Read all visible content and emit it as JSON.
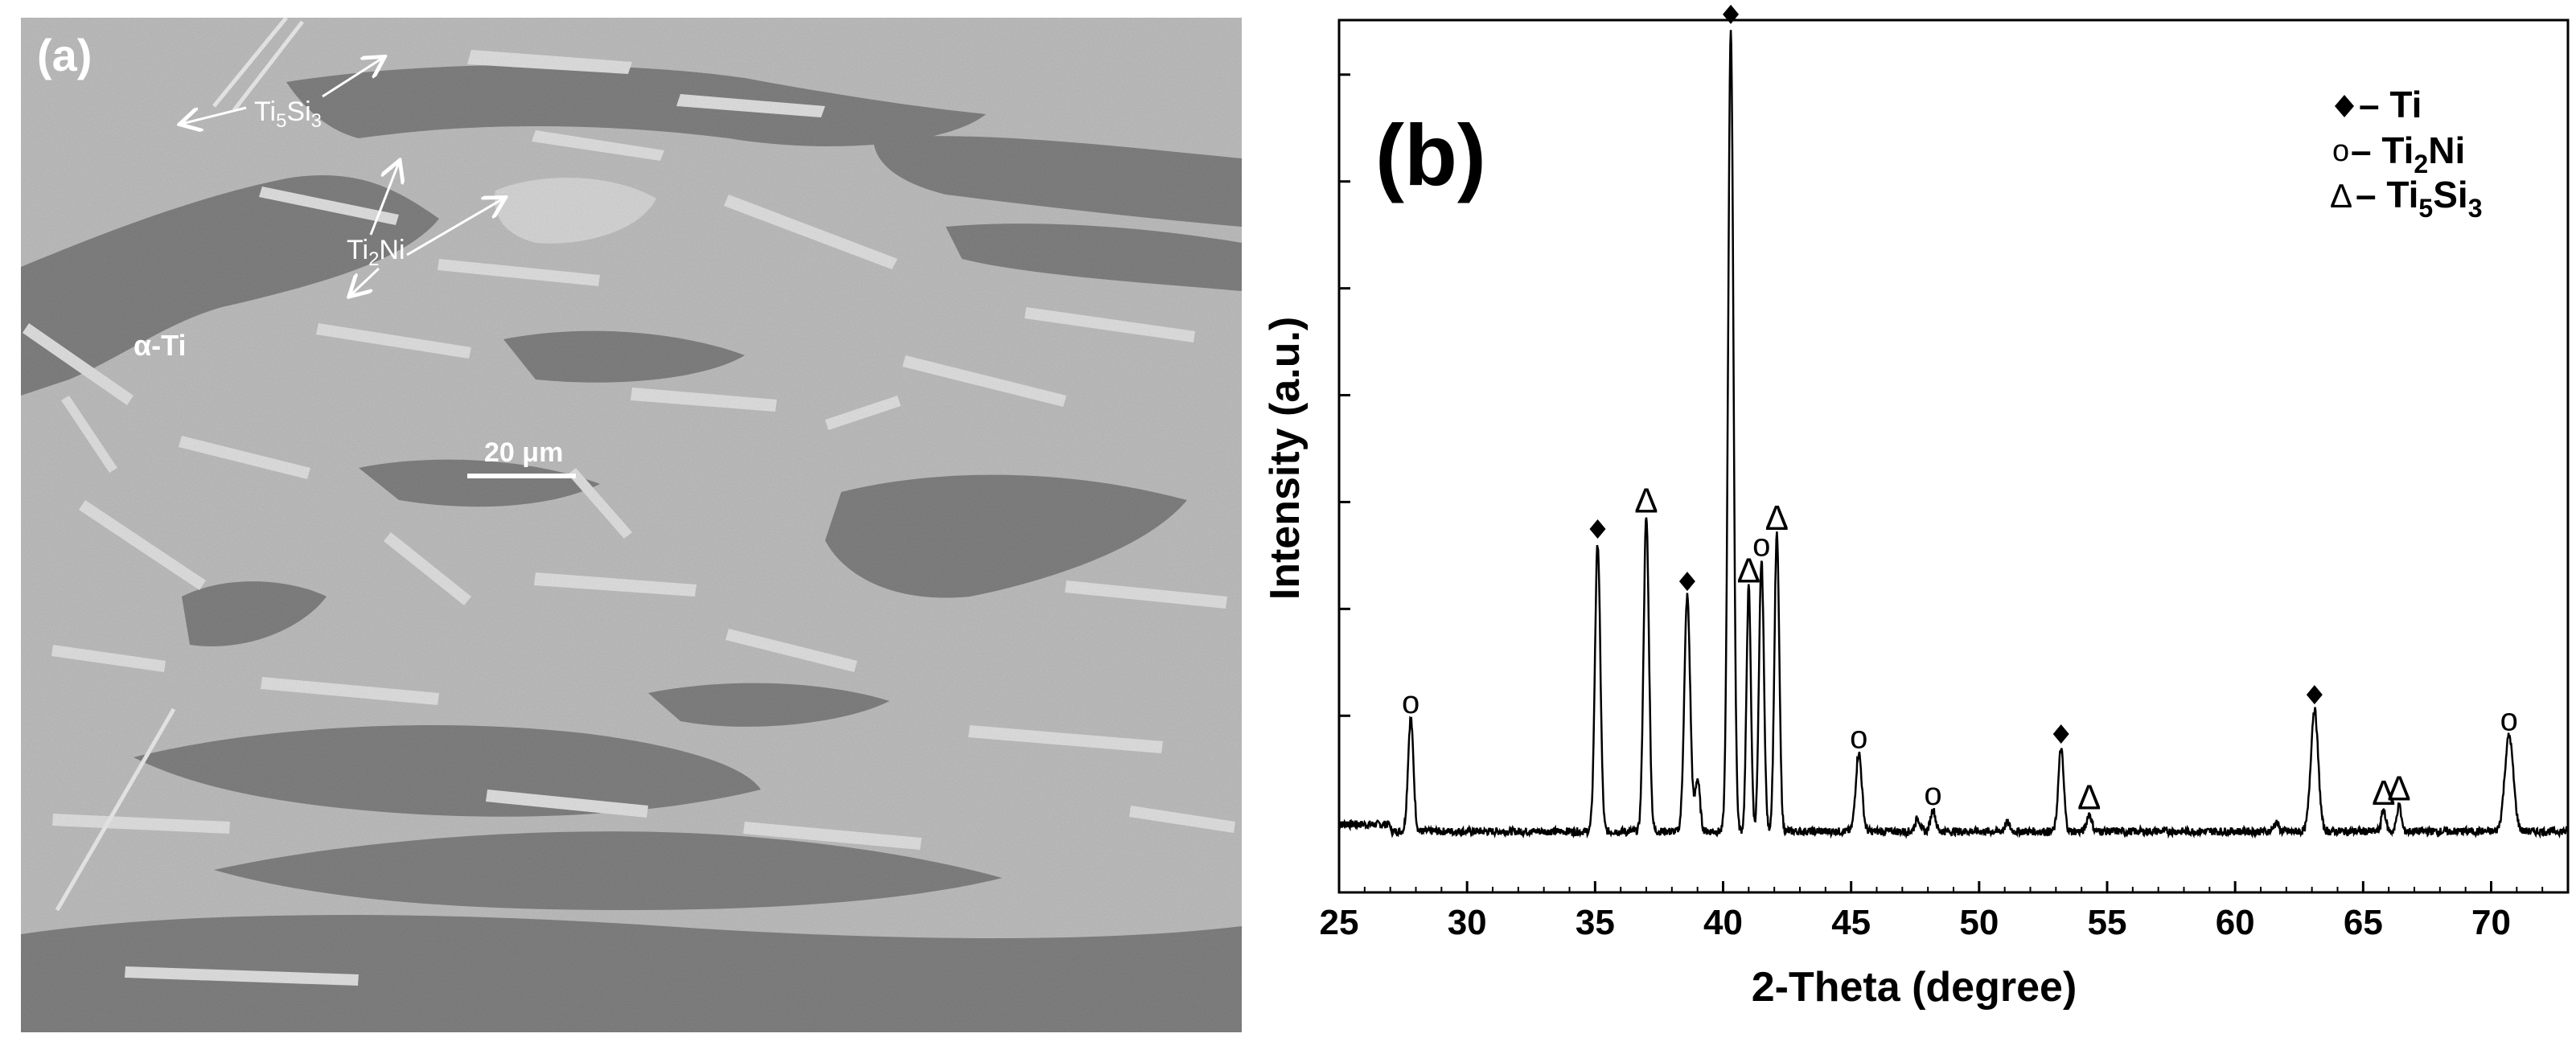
{
  "panel_a": {
    "label": "(a)",
    "phases": {
      "ti5si3": {
        "base": "Ti",
        "sub1": "5",
        "mid": "Si",
        "sub2": "3"
      },
      "ti2ni": {
        "base": "Ti",
        "sub1": "2",
        "mid": "Ni"
      },
      "alpha_ti": "α-Ti"
    },
    "scale_bar_label": "20 μm",
    "colors": {
      "matrix": "#b9b9b9",
      "dark_phase": "#7f7f7f",
      "light_phase": "#dadada",
      "arrow": "#ffffff"
    }
  },
  "panel_b": {
    "label": "(b)",
    "legend": [
      {
        "marker": "diamond",
        "symbol": "♦",
        "text": "– Ti"
      },
      {
        "marker": "circle",
        "symbol": "o",
        "text": "– Ti",
        "sub": "2",
        "suffix": "Ni"
      },
      {
        "marker": "triangle",
        "symbol": "Δ",
        "text": "– Ti",
        "sub": "5",
        "suffix": "Si",
        "sub2": "3"
      }
    ]
  },
  "chart_data": {
    "type": "line",
    "xlabel": "2-Theta (degree)",
    "ylabel": "Intensity (a.u.)",
    "xlim": [
      25,
      73
    ],
    "x_ticks": [
      25,
      30,
      35,
      40,
      45,
      50,
      55,
      60,
      65,
      70
    ],
    "ylim": [
      0,
      100
    ],
    "y_ticks_count": 8,
    "baseline": 7,
    "peaks": [
      {
        "x": 27.8,
        "height": 13,
        "width": 0.22,
        "phase": "Ti2Ni",
        "marker": "o"
      },
      {
        "x": 35.1,
        "height": 33,
        "width": 0.22,
        "phase": "Ti",
        "marker": "♦"
      },
      {
        "x": 37.0,
        "height": 36,
        "width": 0.22,
        "phase": "Ti5Si3",
        "marker": "Δ"
      },
      {
        "x": 38.6,
        "height": 27,
        "width": 0.24,
        "phase": "Ti",
        "marker": "♦"
      },
      {
        "x": 39.0,
        "height": 6,
        "width": 0.2,
        "phase": "",
        "marker": ""
      },
      {
        "x": 40.3,
        "height": 92,
        "width": 0.22,
        "phase": "Ti",
        "marker": "♦"
      },
      {
        "x": 41.0,
        "height": 28,
        "width": 0.18,
        "phase": "Ti5Si3",
        "marker": "Δ"
      },
      {
        "x": 41.5,
        "height": 31,
        "width": 0.2,
        "phase": "Ti2Ni",
        "marker": "o"
      },
      {
        "x": 42.1,
        "height": 34,
        "width": 0.2,
        "phase": "Ti5Si3",
        "marker": "Δ"
      },
      {
        "x": 45.3,
        "height": 9,
        "width": 0.25,
        "phase": "Ti2Ni",
        "marker": "o"
      },
      {
        "x": 47.6,
        "height": 1.5,
        "width": 0.2,
        "phase": "",
        "marker": ""
      },
      {
        "x": 48.2,
        "height": 2.5,
        "width": 0.2,
        "phase": "Ti2Ni",
        "marker": "o"
      },
      {
        "x": 51.1,
        "height": 1,
        "width": 0.2,
        "phase": "",
        "marker": ""
      },
      {
        "x": 53.2,
        "height": 9.5,
        "width": 0.22,
        "phase": "Ti",
        "marker": "♦"
      },
      {
        "x": 54.3,
        "height": 2,
        "width": 0.2,
        "phase": "Ti5Si3",
        "marker": "Δ"
      },
      {
        "x": 61.6,
        "height": 1,
        "width": 0.2,
        "phase": "",
        "marker": ""
      },
      {
        "x": 63.1,
        "height": 14,
        "width": 0.3,
        "phase": "Ti",
        "marker": "♦"
      },
      {
        "x": 65.8,
        "height": 2.5,
        "width": 0.18,
        "phase": "Ti5Si3",
        "marker": "Δ"
      },
      {
        "x": 66.4,
        "height": 3,
        "width": 0.18,
        "phase": "Ti5Si3",
        "marker": "Δ"
      },
      {
        "x": 70.7,
        "height": 11,
        "width": 0.35,
        "phase": "Ti2Ni",
        "marker": "o"
      }
    ]
  }
}
